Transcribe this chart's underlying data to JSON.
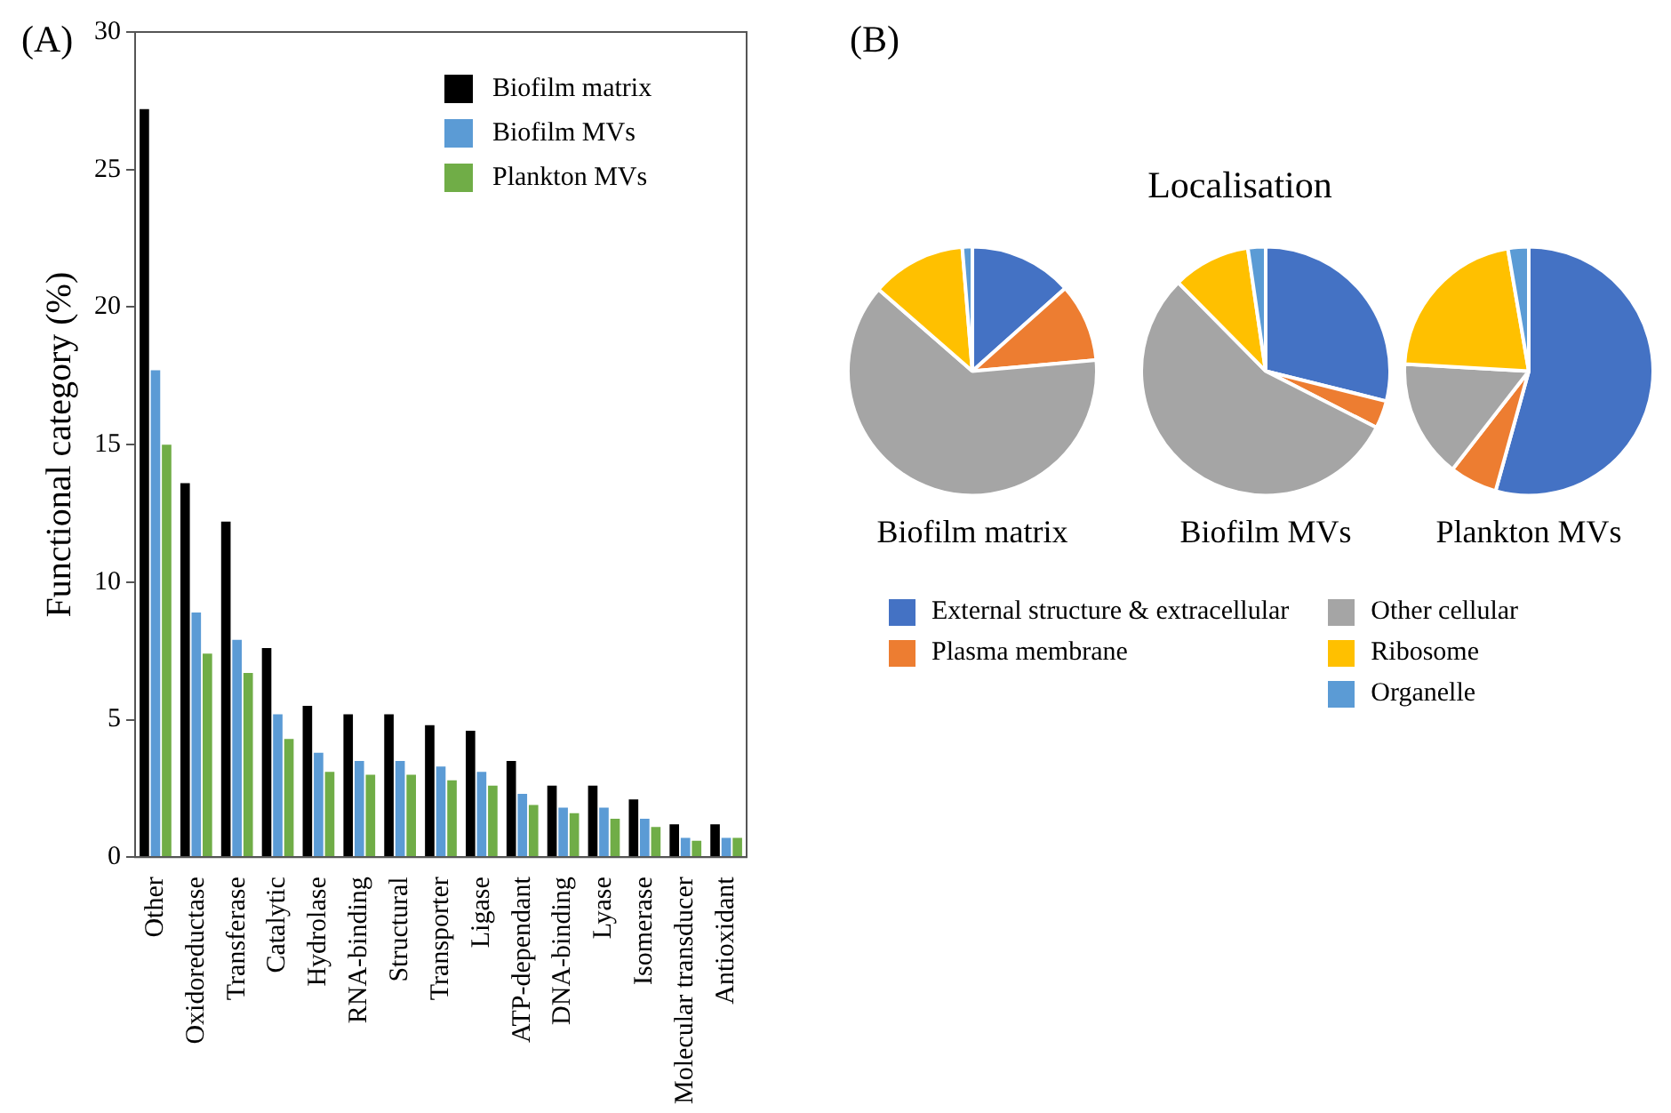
{
  "chart_data": [
    {
      "type": "bar",
      "annotations": [
        "(A)"
      ],
      "ylabel": "Functional category (%)",
      "legend": "top right",
      "categories": [
        "Other",
        "Oxidoreductase",
        "Transferase",
        "Catalytic",
        "Hydrolase",
        "RNA-binding",
        "Structural",
        "Transporter",
        "Ligase",
        "ATP-dependant",
        "DNA-binding",
        "Lyase",
        "Isomerase",
        "Molecular transducer",
        "Antioxidant"
      ],
      "series": [
        {
          "name": "Biofilm matrix",
          "color": "#000000",
          "values": [
            27.2,
            13.6,
            12.2,
            7.6,
            5.5,
            5.2,
            5.2,
            4.8,
            4.6,
            3.5,
            2.6,
            2.6,
            2.1,
            1.2,
            1.2
          ]
        },
        {
          "name": "Biofilm MVs",
          "color": "#5b9bd5",
          "values": [
            17.7,
            8.9,
            7.9,
            5.2,
            3.8,
            3.5,
            3.5,
            3.3,
            3.1,
            2.3,
            1.8,
            1.8,
            1.4,
            0.7,
            0.7
          ]
        },
        {
          "name": "Plankton MVs",
          "color": "#70ad47",
          "values": [
            15.0,
            7.4,
            6.7,
            4.3,
            3.1,
            3.0,
            3.0,
            2.8,
            2.6,
            1.9,
            1.6,
            1.4,
            1.1,
            0.6,
            0.7
          ]
        }
      ],
      "ylim": [
        0,
        30
      ],
      "yticks": [
        0,
        5,
        10,
        15,
        20,
        25,
        30
      ]
    },
    {
      "type": "pie",
      "title": "Localisation",
      "annotations": [
        "(B)"
      ],
      "legend": "bottom",
      "categories": [
        "External structure & extracellular",
        "Plasma membrane",
        "Other cellular",
        "Ribosome",
        "Organelle"
      ],
      "colors": [
        "#4472c4",
        "#ed7d31",
        "#a5a5a5",
        "#ffc000",
        "#5b9bd5"
      ],
      "series": [
        {
          "name": "Biofilm matrix",
          "values": [
            13.4,
            10.2,
            62.8,
            12.3,
            1.3
          ]
        },
        {
          "name": "Biofilm MVs",
          "values": [
            28.9,
            3.6,
            55.1,
            10.1,
            2.3
          ]
        },
        {
          "name": "Plankton MVs",
          "values": [
            54.3,
            6.2,
            15.4,
            21.4,
            2.7
          ]
        }
      ]
    }
  ]
}
